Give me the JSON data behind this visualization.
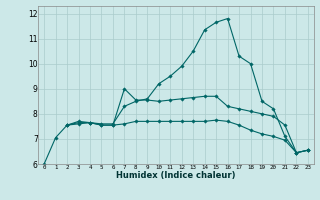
{
  "xlabel": "Humidex (Indice chaleur)",
  "bg_color": "#cce8e8",
  "grid_color": "#aacccc",
  "line_color": "#006666",
  "xlim": [
    -0.5,
    23.5
  ],
  "ylim": [
    6,
    12.3
  ],
  "xtick_labels": [
    "0",
    "1",
    "2",
    "3",
    "4",
    "5",
    "6",
    "7",
    "8",
    "9",
    "10",
    "11",
    "12",
    "13",
    "14",
    "15",
    "16",
    "17",
    "18",
    "19",
    "20",
    "21",
    "22",
    "23"
  ],
  "yticks": [
    6,
    7,
    8,
    9,
    10,
    11,
    12
  ],
  "series": [
    {
      "x": [
        0,
        1,
        2,
        3,
        4,
        5,
        6,
        7,
        8,
        9,
        10,
        11,
        12,
        13,
        14,
        15,
        16,
        17,
        18,
        19,
        20,
        21,
        22,
        23
      ],
      "y": [
        6.0,
        7.05,
        7.55,
        7.65,
        7.65,
        7.6,
        7.6,
        8.3,
        8.5,
        8.6,
        9.2,
        9.5,
        9.9,
        10.5,
        11.35,
        11.65,
        11.8,
        10.3,
        10.0,
        8.5,
        8.2,
        7.1,
        6.45,
        6.55
      ]
    },
    {
      "x": [
        2,
        3,
        4,
        5,
        6,
        7,
        8,
        9,
        10,
        11,
        12,
        13,
        14,
        15,
        16,
        17,
        18,
        19,
        20,
        21,
        22,
        23
      ],
      "y": [
        7.55,
        7.7,
        7.65,
        7.55,
        7.55,
        9.0,
        8.55,
        8.55,
        8.5,
        8.55,
        8.6,
        8.65,
        8.7,
        8.7,
        8.3,
        8.2,
        8.1,
        8.0,
        7.9,
        7.55,
        6.45,
        6.55
      ]
    },
    {
      "x": [
        2,
        3,
        4,
        5,
        6,
        7,
        8,
        9,
        10,
        11,
        12,
        13,
        14,
        15,
        16,
        17,
        18,
        19,
        20,
        21,
        22,
        23
      ],
      "y": [
        7.55,
        7.6,
        7.65,
        7.55,
        7.55,
        7.6,
        7.7,
        7.7,
        7.7,
        7.7,
        7.7,
        7.7,
        7.7,
        7.75,
        7.7,
        7.55,
        7.35,
        7.2,
        7.1,
        6.95,
        6.45,
        6.55
      ]
    }
  ]
}
